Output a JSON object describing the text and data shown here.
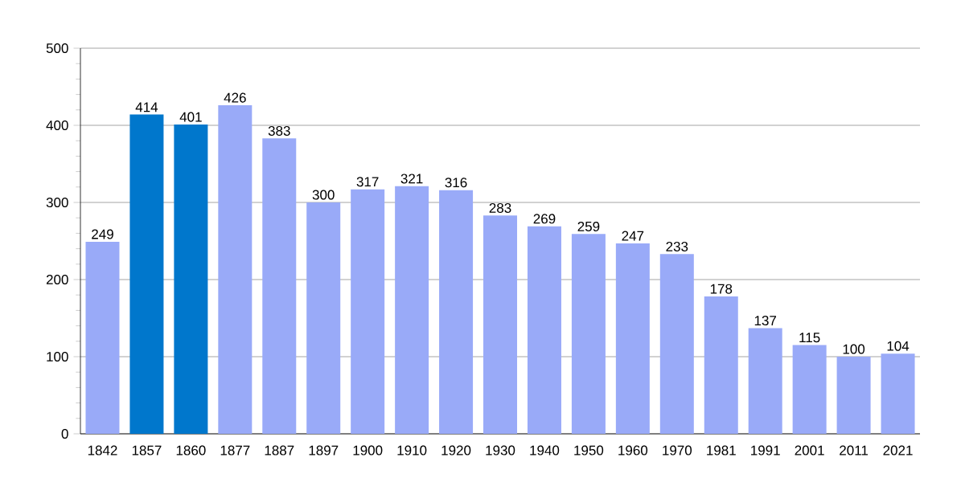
{
  "chart_data": {
    "type": "bar",
    "categories": [
      "1842",
      "1857",
      "1860",
      "1877",
      "1887",
      "1897",
      "1900",
      "1910",
      "1920",
      "1930",
      "1940",
      "1950",
      "1960",
      "1970",
      "1981",
      "1991",
      "2001",
      "2011",
      "2021"
    ],
    "values": [
      249,
      414,
      401,
      426,
      383,
      300,
      317,
      321,
      316,
      283,
      269,
      259,
      247,
      233,
      178,
      137,
      115,
      100,
      104
    ],
    "colors": [
      "#99aaf8",
      "#0077cc",
      "#0077cc",
      "#99aaf8",
      "#99aaf8",
      "#99aaf8",
      "#99aaf8",
      "#99aaf8",
      "#99aaf8",
      "#99aaf8",
      "#99aaf8",
      "#99aaf8",
      "#99aaf8",
      "#99aaf8",
      "#99aaf8",
      "#99aaf8",
      "#99aaf8",
      "#99aaf8",
      "#99aaf8"
    ],
    "ylim": [
      0,
      500
    ],
    "yticks": [
      0,
      100,
      200,
      300,
      400,
      500
    ],
    "grid": "y",
    "data_labels": true
  }
}
